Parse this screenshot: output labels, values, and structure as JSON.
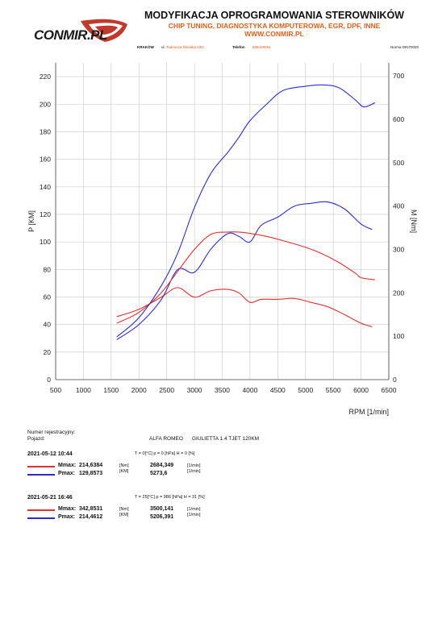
{
  "header": {
    "logo_text": "CONMIR.PL",
    "title": "MODYFIKACJA OPROGRAMOWANIA STEROWNIKÓW",
    "subtitle": "CHIP TUNING, DIAGNOSTYKA KOMPUTEROWA, EGR, DPF, INNE",
    "website": "WWW.CONMIR.PL",
    "city": "KRAKÓW",
    "address_prefix": "ul.",
    "address": "Tadeusza Śliwiaka 53D",
    "phone_label": "Telefon",
    "phone": "508429091",
    "norm": "Norma DIN70020"
  },
  "colors": {
    "power": "#2b2bd6",
    "torque": "#e03030",
    "brand": "#e0601a",
    "grid": "#c8c8c8"
  },
  "chart_data": {
    "type": "line",
    "xlabel": "RPM [1/min]",
    "ylabel_left": "P [KM]",
    "ylabel_right": "M [Nm]",
    "xlim": [
      500,
      6500
    ],
    "ylim_left": [
      0,
      230
    ],
    "ylim_right": [
      0,
      730
    ],
    "x_ticks": [
      500,
      1000,
      1500,
      2000,
      2500,
      3000,
      3500,
      4000,
      4500,
      5000,
      5500,
      6000,
      6500
    ],
    "y_left_ticks": [
      0,
      20,
      40,
      60,
      80,
      100,
      120,
      140,
      160,
      180,
      200,
      220
    ],
    "y_right_ticks": [
      0,
      100,
      200,
      300,
      400,
      500,
      600,
      700
    ],
    "grid": true,
    "series": [
      {
        "name": "Mmax",
        "axis": "right",
        "color": "#e03030",
        "x": [
          1600,
          2000,
          2400,
          2700,
          3000,
          3300,
          3600,
          3800,
          4000,
          4200,
          4500,
          4800,
          5100,
          5400,
          5700,
          6000,
          6200
        ],
        "values": [
          145,
          162,
          190,
          212,
          190,
          205,
          208,
          200,
          178,
          185,
          185,
          187,
          178,
          168,
          150,
          130,
          122
        ]
      },
      {
        "name": "Pmax",
        "axis": "left",
        "color": "#2b2bd6",
        "x": [
          1600,
          2000,
          2400,
          2700,
          3000,
          3300,
          3600,
          3800,
          4000,
          4200,
          4500,
          4800,
          5100,
          5400,
          5700,
          6000,
          6200
        ],
        "values": [
          29,
          40,
          58,
          80,
          78,
          95,
          106,
          104,
          100,
          112,
          118,
          126,
          128,
          129,
          124,
          113,
          109
        ]
      },
      {
        "name": "Mmax",
        "axis": "right",
        "color": "#e03030",
        "x": [
          1600,
          2000,
          2400,
          2700,
          3000,
          3300,
          3600,
          3800,
          4000,
          4300,
          4600,
          5000,
          5300,
          5600,
          5900,
          6000,
          6250
        ],
        "values": [
          130,
          155,
          200,
          250,
          300,
          335,
          340,
          340,
          337,
          330,
          320,
          305,
          290,
          270,
          245,
          235,
          230
        ]
      },
      {
        "name": "Pmax",
        "axis": "left",
        "color": "#2b2bd6",
        "x": [
          1600,
          2000,
          2400,
          2700,
          3000,
          3300,
          3600,
          3800,
          4000,
          4300,
          4600,
          5000,
          5300,
          5600,
          5900,
          6050,
          6250
        ],
        "values": [
          31,
          45,
          68,
          92,
          125,
          150,
          165,
          176,
          188,
          200,
          210,
          213,
          214,
          212,
          203,
          198,
          201
        ]
      }
    ]
  },
  "vehicle": {
    "reg_label": "Numer rejestracyjny:",
    "vehicle_label": "Pojazd:",
    "make": "ALFA ROMEO",
    "model": "GIULIETTA 1.4 TJET 120KM"
  },
  "runs": [
    {
      "date": "2021-05-12  10:44",
      "conditions": "T = 0[°C]  p = 0 [hPa]  H = 0 [%]",
      "rows": [
        {
          "label": "Mmax:",
          "value": "214,6384",
          "unit": "[Nm]",
          "rpm": "2684,349",
          "rpm_unit": "[1/min]",
          "color": "#e03030"
        },
        {
          "label": "Pmax:",
          "value": "129,8573",
          "unit": "[KM]",
          "rpm": "5273,6",
          "rpm_unit": "[1/min]",
          "color": "#2b2bd6"
        }
      ]
    },
    {
      "date": "2021-05-21  16:46",
      "conditions": "T = 25[°C]  p = 986 [hPa]  H = 31 [%]",
      "rows": [
        {
          "label": "Mmax:",
          "value": "342,8531",
          "unit": "[Nm]",
          "rpm": "3500,141",
          "rpm_unit": "[1/min]",
          "color": "#e03030"
        },
        {
          "label": "Pmax:",
          "value": "214,4612",
          "unit": "[KM]",
          "rpm": "5206,391",
          "rpm_unit": "[1/min]",
          "color": "#2b2bd6"
        }
      ]
    }
  ]
}
